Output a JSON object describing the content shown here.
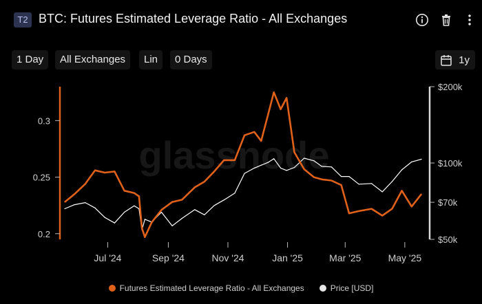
{
  "header": {
    "badge": "T2",
    "title": "BTC: Futures Estimated Leverage Ratio - All Exchanges"
  },
  "toolbar": {
    "resolution": "1 Day",
    "exchange": "All Exchanges",
    "scale": "Lin",
    "moving_average": "0 Days",
    "range": "1y"
  },
  "watermark": "glassnode",
  "colors": {
    "leverage": "#e0611a",
    "price": "#ffffff",
    "background": "#000000"
  },
  "chart_data": {
    "type": "line",
    "title": "BTC: Futures Estimated Leverage Ratio - All Exchanges",
    "x_range": [
      "2024-05-18",
      "2025-05-18"
    ],
    "x_ticks": [
      {
        "label": "Jul '24",
        "date": "2024-07-01"
      },
      {
        "label": "Sep '24",
        "date": "2024-09-01"
      },
      {
        "label": "Nov '24",
        "date": "2024-11-01"
      },
      {
        "label": "Jan '25",
        "date": "2025-01-01"
      },
      {
        "label": "Mar '25",
        "date": "2025-03-01"
      },
      {
        "label": "May '25",
        "date": "2025-05-01"
      }
    ],
    "y_left": {
      "range": [
        0.195,
        0.33
      ],
      "ticks": [
        {
          "label": "0.2",
          "value": 0.2
        },
        {
          "label": "0.25",
          "value": 0.25
        },
        {
          "label": "0.3",
          "value": 0.3
        }
      ]
    },
    "y_right": {
      "scale": "log",
      "range": [
        50000,
        200000
      ],
      "ticks": [
        {
          "label": "$50k",
          "value": 50000
        },
        {
          "label": "$70k",
          "value": 70000
        },
        {
          "label": "$100k",
          "value": 100000
        },
        {
          "label": "$200k",
          "value": 200000
        }
      ]
    },
    "legend_position": "bottom",
    "series": [
      {
        "name": "Futures Estimated Leverage Ratio - All Exchanges",
        "axis": "left",
        "x": [
          "2024-05-18",
          "2024-05-28",
          "2024-06-08",
          "2024-06-18",
          "2024-06-28",
          "2024-07-08",
          "2024-07-18",
          "2024-07-28",
          "2024-08-02",
          "2024-08-05",
          "2024-08-08",
          "2024-08-15",
          "2024-08-25",
          "2024-09-05",
          "2024-09-15",
          "2024-09-28",
          "2024-10-08",
          "2024-10-18",
          "2024-10-28",
          "2024-11-08",
          "2024-11-18",
          "2024-11-28",
          "2024-12-05",
          "2024-12-12",
          "2024-12-18",
          "2024-12-25",
          "2024-12-31",
          "2025-01-08",
          "2025-01-18",
          "2025-01-28",
          "2025-02-05",
          "2025-02-15",
          "2025-02-25",
          "2025-03-05",
          "2025-03-15",
          "2025-03-28",
          "2025-04-08",
          "2025-04-18",
          "2025-04-28",
          "2025-05-08",
          "2025-05-18"
        ],
        "y": [
          0.228,
          0.235,
          0.244,
          0.256,
          0.254,
          0.255,
          0.238,
          0.236,
          0.233,
          0.205,
          0.197,
          0.21,
          0.221,
          0.228,
          0.23,
          0.241,
          0.246,
          0.255,
          0.265,
          0.265,
          0.287,
          0.29,
          0.282,
          0.305,
          0.325,
          0.31,
          0.32,
          0.272,
          0.257,
          0.25,
          0.248,
          0.247,
          0.243,
          0.218,
          0.22,
          0.222,
          0.216,
          0.222,
          0.238,
          0.224,
          0.235
        ]
      },
      {
        "name": "Price [USD]",
        "axis": "right",
        "x": [
          "2024-05-18",
          "2024-05-28",
          "2024-06-08",
          "2024-06-18",
          "2024-06-28",
          "2024-07-08",
          "2024-07-18",
          "2024-07-28",
          "2024-08-02",
          "2024-08-05",
          "2024-08-08",
          "2024-08-15",
          "2024-08-25",
          "2024-09-05",
          "2024-09-15",
          "2024-09-28",
          "2024-10-08",
          "2024-10-18",
          "2024-10-28",
          "2024-11-08",
          "2024-11-18",
          "2024-11-28",
          "2024-12-05",
          "2024-12-12",
          "2024-12-18",
          "2024-12-25",
          "2024-12-31",
          "2025-01-08",
          "2025-01-18",
          "2025-01-28",
          "2025-02-05",
          "2025-02-15",
          "2025-02-25",
          "2025-03-05",
          "2025-03-15",
          "2025-03-28",
          "2025-04-08",
          "2025-04-18",
          "2025-04-28",
          "2025-05-08",
          "2025-05-18"
        ],
        "y": [
          66000,
          68500,
          69800,
          66500,
          61000,
          58000,
          64000,
          67800,
          66000,
          54500,
          60000,
          58500,
          64000,
          56500,
          60500,
          65500,
          62500,
          68000,
          71500,
          76000,
          91000,
          95500,
          98000,
          100500,
          104000,
          95500,
          93500,
          96000,
          104500,
          102000,
          97000,
          96500,
          88500,
          88500,
          82500,
          83000,
          77000,
          84500,
          94000,
          101000,
          103500
        ]
      }
    ]
  }
}
